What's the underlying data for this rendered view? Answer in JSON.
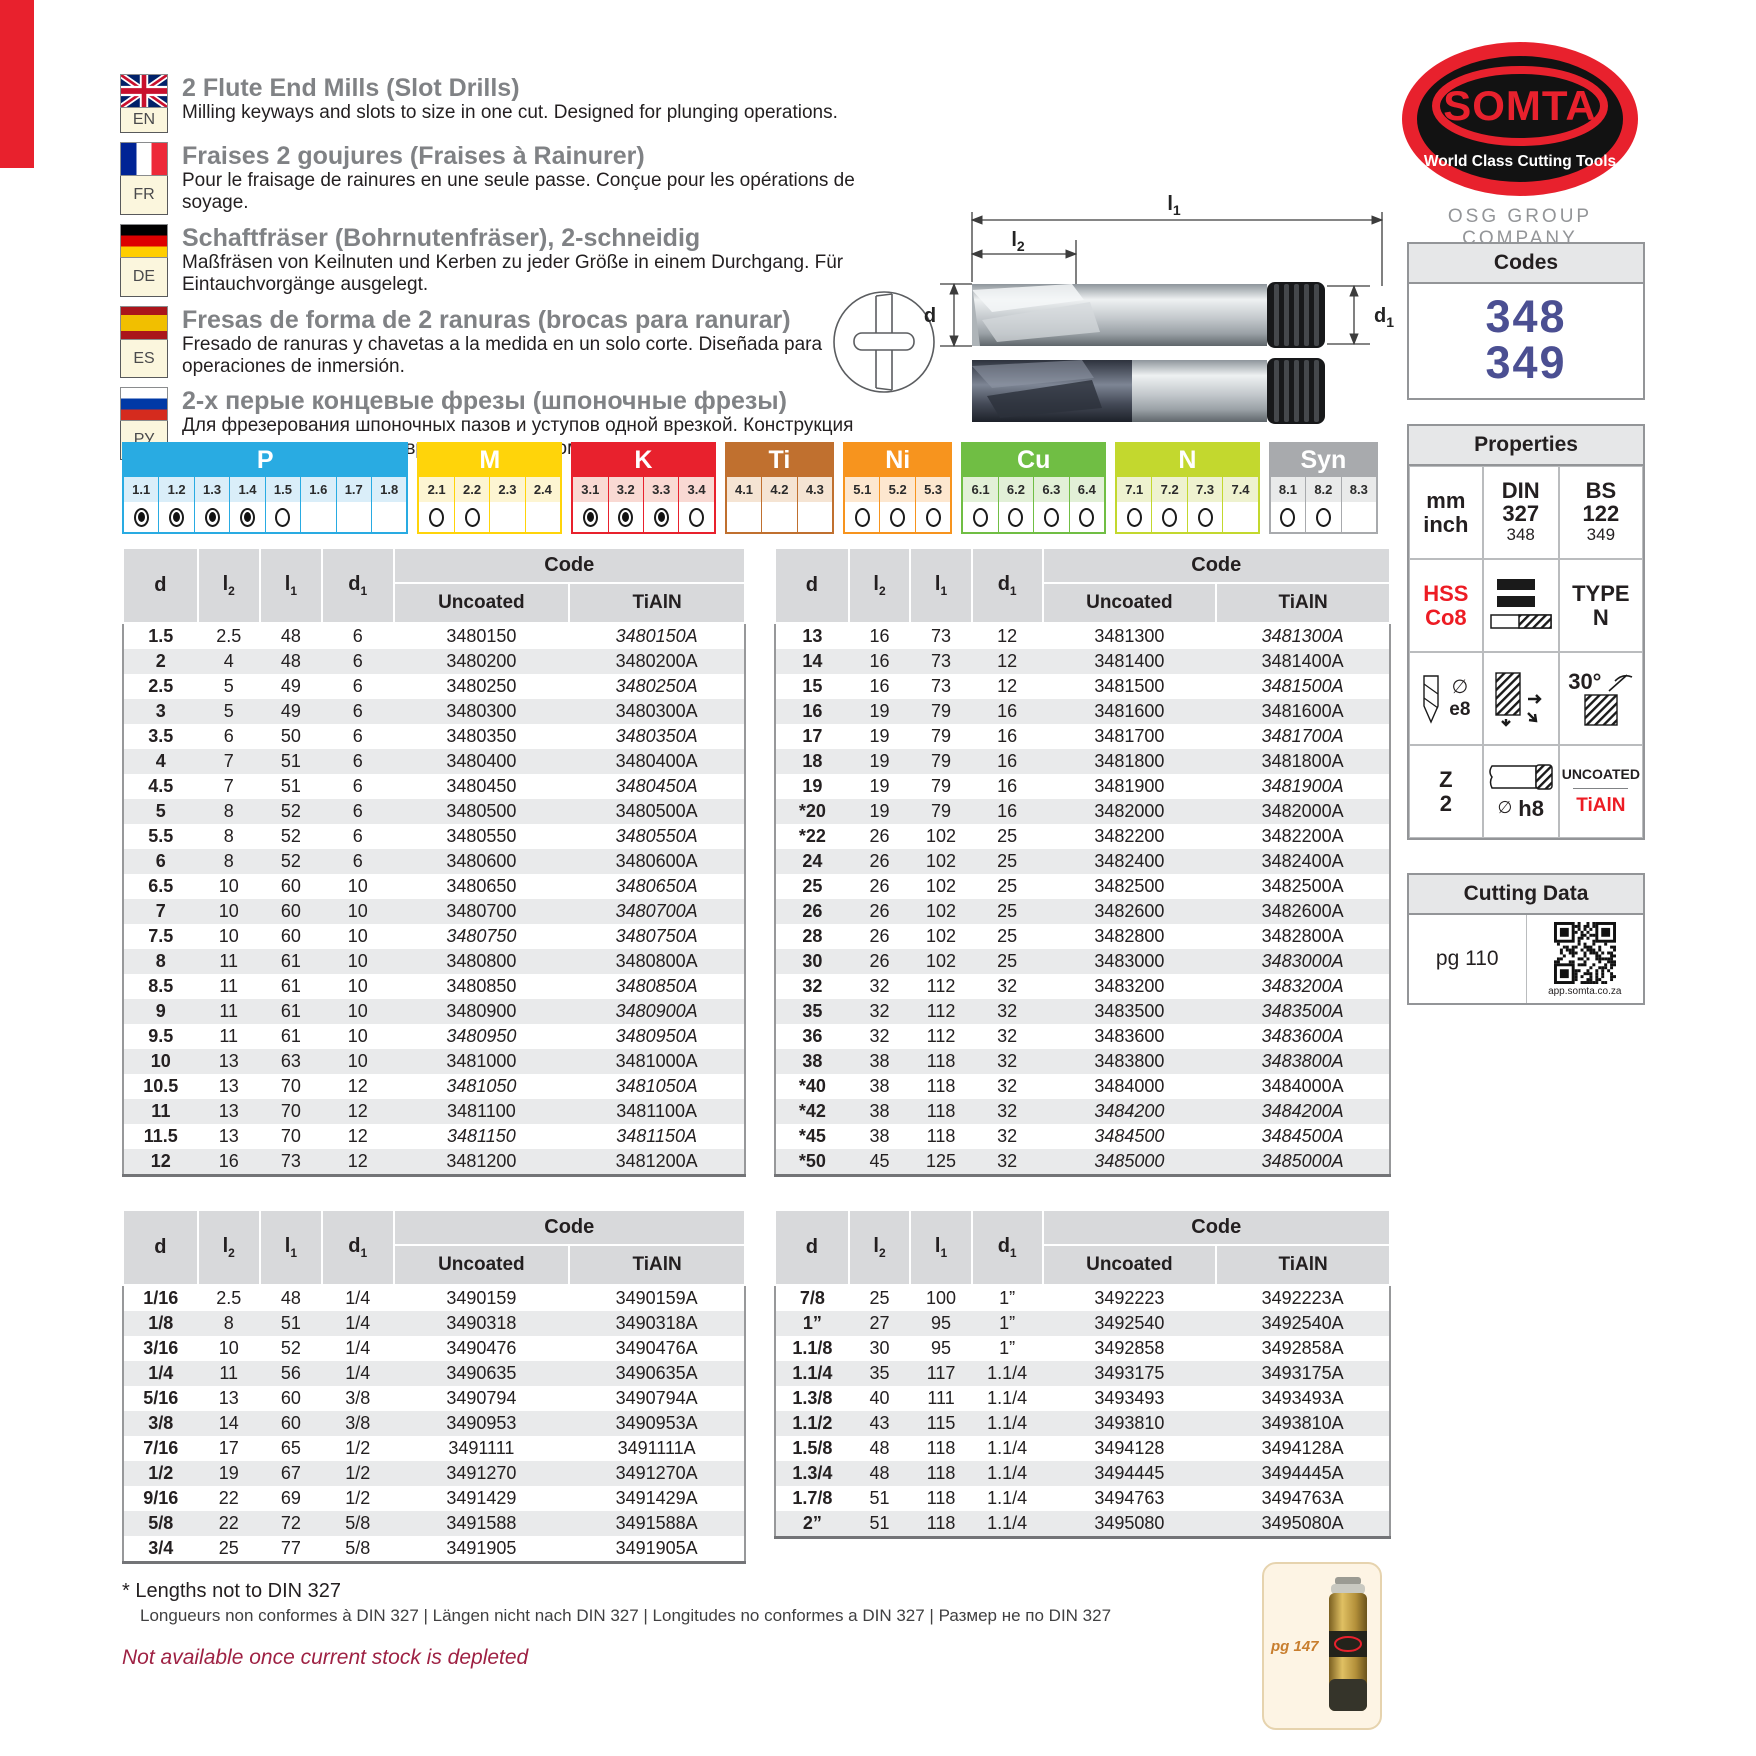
{
  "languages": [
    {
      "code": "EN",
      "flag": "uk",
      "title": "2 Flute End Mills (Slot Drills)",
      "desc": "Milling keyways and slots to size in one cut. Designed for plunging operations."
    },
    {
      "code": "FR",
      "flag": "fr",
      "title": "Fraises 2 goujures (Fraises à Rainurer)",
      "desc": "Pour le fraisage de rainures en une seule passe. Conçue pour les opérations de soyage."
    },
    {
      "code": "DE",
      "flag": "de",
      "title": "Schaftfräser (Bohrnutenfräser), 2-schneidig",
      "desc": "Maßfräsen von Keilnuten und Kerben zu jeder Größe in einem Durchgang. Für Eintauchvorgänge ausgelegt."
    },
    {
      "code": "ES",
      "flag": "es",
      "title": "Fresas de forma de 2 ranuras (brocas para ranurar)",
      "desc": "Fresado de ranuras y chavetas a la medida en un solo corte. Diseñada para operaciones de inmersión."
    },
    {
      "code": "РУ",
      "flag": "ru",
      "title": "2-х перые концевые фрезы (шпоночные фрезы)",
      "desc": "Для фрезерования шпоночных пазов и уступов одной врезкой. Конструкция позволяет осуществлять врезание под углом."
    }
  ],
  "logo": {
    "name": "SOMTA",
    "tagline": "World Class Cutting Tools",
    "company": "OSG GROUP COMPANY",
    "brand_red": "#e8212d"
  },
  "codes": {
    "title": "Codes",
    "values": [
      "348",
      "349"
    ],
    "color": "#4b4f92"
  },
  "properties": {
    "title": "Properties",
    "unit_top": "mm",
    "unit_bottom": "inch",
    "din_l1": "DIN",
    "din_l2": "327",
    "din_sub": "348",
    "bs_l1": "BS",
    "bs_l2": "122",
    "bs_sub": "349",
    "hss_l1": "HSS",
    "hss_l2": "Co8",
    "type_l1": "TYPE",
    "type_l2": "N",
    "diam_symbol": "∅",
    "flute_tolerance": "e8",
    "helix_angle": "30°",
    "z_l1": "Z",
    "z_l2": "2",
    "shank_tolerance": "h8",
    "coating_1": "UNCOATED",
    "coating_2": "TiAlN"
  },
  "cutting": {
    "title": "Cutting Data",
    "page": "pg 110",
    "qr_caption": "app.somta.co.za"
  },
  "diagram": {
    "l1_b": "l",
    "l1_s": "1",
    "l2_b": "l",
    "l2_s": "2",
    "d": "d",
    "d1_b": "d",
    "d1_s": "1"
  },
  "materials": [
    {
      "label": "P",
      "color": "#29abe2",
      "tint": "#daeef9",
      "cells": [
        {
          "n": "1.1",
          "state": "filled"
        },
        {
          "n": "1.2",
          "state": "filled"
        },
        {
          "n": "1.3",
          "state": "filled"
        },
        {
          "n": "1.4",
          "state": "filled"
        },
        {
          "n": "1.5",
          "state": "empty"
        },
        {
          "n": "1.6",
          "state": "none"
        },
        {
          "n": "1.7",
          "state": "none"
        },
        {
          "n": "1.8",
          "state": "none"
        }
      ]
    },
    {
      "label": "M",
      "color": "#ffd40a",
      "tint": "#fdf5d2",
      "cells": [
        {
          "n": "2.1",
          "state": "empty"
        },
        {
          "n": "2.2",
          "state": "empty"
        },
        {
          "n": "2.3",
          "state": "none"
        },
        {
          "n": "2.4",
          "state": "none"
        }
      ]
    },
    {
      "label": "K",
      "color": "#e8212d",
      "tint": "#f9d9d3",
      "cells": [
        {
          "n": "3.1",
          "state": "filled"
        },
        {
          "n": "3.2",
          "state": "filled"
        },
        {
          "n": "3.3",
          "state": "filled"
        },
        {
          "n": "3.4",
          "state": "empty"
        }
      ]
    },
    {
      "label": "Ti",
      "color": "#c0702f",
      "tint": "#f5e4d3",
      "cells": [
        {
          "n": "4.1",
          "state": "none"
        },
        {
          "n": "4.2",
          "state": "none"
        },
        {
          "n": "4.3",
          "state": "none"
        }
      ]
    },
    {
      "label": "Ni",
      "color": "#f7941e",
      "tint": "#fde7cf",
      "cells": [
        {
          "n": "5.1",
          "state": "empty"
        },
        {
          "n": "5.2",
          "state": "empty"
        },
        {
          "n": "5.3",
          "state": "empty"
        }
      ]
    },
    {
      "label": "Cu",
      "color": "#70be44",
      "tint": "#e2f0d7",
      "cells": [
        {
          "n": "6.1",
          "state": "empty"
        },
        {
          "n": "6.2",
          "state": "empty"
        },
        {
          "n": "6.3",
          "state": "empty"
        },
        {
          "n": "6.4",
          "state": "empty"
        }
      ]
    },
    {
      "label": "N",
      "color": "#c3d82e",
      "tint": "#eef2cf",
      "cells": [
        {
          "n": "7.1",
          "state": "empty"
        },
        {
          "n": "7.2",
          "state": "empty"
        },
        {
          "n": "7.3",
          "state": "empty"
        },
        {
          "n": "7.4",
          "state": "none"
        }
      ]
    },
    {
      "label": "Syn",
      "color": "#a8aaad",
      "tint": "#e9eaea",
      "cells": [
        {
          "n": "8.1",
          "state": "empty"
        },
        {
          "n": "8.2",
          "state": "empty"
        },
        {
          "n": "8.3",
          "state": "none"
        }
      ]
    }
  ],
  "tables": {
    "headers": {
      "d": "d",
      "l2_b": "l",
      "l2_s": "2",
      "l1_b": "l",
      "l1_s": "1",
      "d1_b": "d",
      "d1_s": "1",
      "code": "Code",
      "uncoated": "Uncoated",
      "tialn": "TiAlN"
    },
    "t1_rows": [
      [
        "1.5",
        "2.5",
        "48",
        "6",
        "3480150",
        "3480150A",
        1
      ],
      [
        "2",
        "4",
        "48",
        "6",
        "3480200",
        "3480200A",
        0
      ],
      [
        "2.5",
        "5",
        "49",
        "6",
        "3480250",
        "3480250A",
        1
      ],
      [
        "3",
        "5",
        "49",
        "6",
        "3480300",
        "3480300A",
        0
      ],
      [
        "3.5",
        "6",
        "50",
        "6",
        "3480350",
        "3480350A",
        1
      ],
      [
        "4",
        "7",
        "51",
        "6",
        "3480400",
        "3480400A",
        0
      ],
      [
        "4.5",
        "7",
        "51",
        "6",
        "3480450",
        "3480450A",
        1
      ],
      [
        "5",
        "8",
        "52",
        "6",
        "3480500",
        "3480500A",
        0
      ],
      [
        "5.5",
        "8",
        "52",
        "6",
        "3480550",
        "3480550A",
        1
      ],
      [
        "6",
        "8",
        "52",
        "6",
        "3480600",
        "3480600A",
        0
      ],
      [
        "6.5",
        "10",
        "60",
        "10",
        "3480650",
        "3480650A",
        1
      ],
      [
        "7",
        "10",
        "60",
        "10",
        "3480700",
        "3480700A",
        1
      ],
      [
        "7.5",
        "10",
        "60",
        "10",
        "3480750",
        "3480750A",
        3
      ],
      [
        "8",
        "11",
        "61",
        "10",
        "3480800",
        "3480800A",
        0
      ],
      [
        "8.5",
        "11",
        "61",
        "10",
        "3480850",
        "3480850A",
        1
      ],
      [
        "9",
        "11",
        "61",
        "10",
        "3480900",
        "3480900A",
        1
      ],
      [
        "9.5",
        "11",
        "61",
        "10",
        "3480950",
        "3480950A",
        3
      ],
      [
        "10",
        "13",
        "63",
        "10",
        "3481000",
        "3481000A",
        0
      ],
      [
        "10.5",
        "13",
        "70",
        "12",
        "3481050",
        "3481050A",
        3
      ],
      [
        "11",
        "13",
        "70",
        "12",
        "3481100",
        "3481100A",
        0
      ],
      [
        "11.5",
        "13",
        "70",
        "12",
        "3481150",
        "3481150A",
        3
      ],
      [
        "12",
        "16",
        "73",
        "12",
        "3481200",
        "3481200A",
        0
      ]
    ],
    "t2_rows": [
      [
        "13",
        "16",
        "73",
        "12",
        "3481300",
        "3481300A",
        1
      ],
      [
        "14",
        "16",
        "73",
        "12",
        "3481400",
        "3481400A",
        0
      ],
      [
        "15",
        "16",
        "73",
        "12",
        "3481500",
        "3481500A",
        1
      ],
      [
        "16",
        "19",
        "79",
        "16",
        "3481600",
        "3481600A",
        0
      ],
      [
        "17",
        "19",
        "79",
        "16",
        "3481700",
        "3481700A",
        1
      ],
      [
        "18",
        "19",
        "79",
        "16",
        "3481800",
        "3481800A",
        0
      ],
      [
        "19",
        "19",
        "79",
        "16",
        "3481900",
        "3481900A",
        1
      ],
      [
        "*20",
        "19",
        "79",
        "16",
        "3482000",
        "3482000A",
        0
      ],
      [
        "*22",
        "26",
        "102",
        "25",
        "3482200",
        "3482200A",
        0
      ],
      [
        "24",
        "26",
        "102",
        "25",
        "3482400",
        "3482400A",
        0
      ],
      [
        "25",
        "26",
        "102",
        "25",
        "3482500",
        "3482500A",
        0
      ],
      [
        "26",
        "26",
        "102",
        "25",
        "3482600",
        "3482600A",
        0
      ],
      [
        "28",
        "26",
        "102",
        "25",
        "3482800",
        "3482800A",
        0
      ],
      [
        "30",
        "26",
        "102",
        "25",
        "3483000",
        "3483000A",
        1
      ],
      [
        "32",
        "32",
        "112",
        "32",
        "3483200",
        "3483200A",
        1
      ],
      [
        "35",
        "32",
        "112",
        "32",
        "3483500",
        "3483500A",
        1
      ],
      [
        "36",
        "32",
        "112",
        "32",
        "3483600",
        "3483600A",
        1
      ],
      [
        "38",
        "38",
        "118",
        "32",
        "3483800",
        "3483800A",
        1
      ],
      [
        "*40",
        "38",
        "118",
        "32",
        "3484000",
        "3484000A",
        0
      ],
      [
        "*42",
        "38",
        "118",
        "32",
        "3484200",
        "3484200A",
        3
      ],
      [
        "*45",
        "38",
        "118",
        "32",
        "3484500",
        "3484500A",
        3
      ],
      [
        "*50",
        "45",
        "125",
        "32",
        "3485000",
        "3485000A",
        3
      ]
    ],
    "t3_rows": [
      [
        "1/16",
        "2.5",
        "48",
        "1/4",
        "3490159",
        "3490159A",
        0
      ],
      [
        "1/8",
        "8",
        "51",
        "1/4",
        "3490318",
        "3490318A",
        0
      ],
      [
        "3/16",
        "10",
        "52",
        "1/4",
        "3490476",
        "3490476A",
        0
      ],
      [
        "1/4",
        "11",
        "56",
        "1/4",
        "3490635",
        "3490635A",
        0
      ],
      [
        "5/16",
        "13",
        "60",
        "3/8",
        "3490794",
        "3490794A",
        0
      ],
      [
        "3/8",
        "14",
        "60",
        "3/8",
        "3490953",
        "3490953A",
        0
      ],
      [
        "7/16",
        "17",
        "65",
        "1/2",
        "3491111",
        "3491111A",
        0
      ],
      [
        "1/2",
        "19",
        "67",
        "1/2",
        "3491270",
        "3491270A",
        0
      ],
      [
        "9/16",
        "22",
        "69",
        "1/2",
        "3491429",
        "3491429A",
        0
      ],
      [
        "5/8",
        "22",
        "72",
        "5/8",
        "3491588",
        "3491588A",
        0
      ],
      [
        "3/4",
        "25",
        "77",
        "5/8",
        "3491905",
        "3491905A",
        0
      ]
    ],
    "t4_rows": [
      [
        "7/8",
        "25",
        "100",
        "1”",
        "3492223",
        "3492223A",
        0
      ],
      [
        "1”",
        "27",
        "95",
        "1”",
        "3492540",
        "3492540A",
        0
      ],
      [
        "1.1/8",
        "30",
        "95",
        "1”",
        "3492858",
        "3492858A",
        0
      ],
      [
        "1.1/4",
        "35",
        "117",
        "1.1/4",
        "3493175",
        "3493175A",
        0
      ],
      [
        "1.3/8",
        "40",
        "111",
        "1.1/4",
        "3493493",
        "3493493A",
        0
      ],
      [
        "1.1/2",
        "43",
        "115",
        "1.1/4",
        "3493810",
        "3493810A",
        0
      ],
      [
        "1.5/8",
        "48",
        "118",
        "1.1/4",
        "3494128",
        "3494128A",
        0
      ],
      [
        "1.3/4",
        "48",
        "118",
        "1.1/4",
        "3494445",
        "3494445A",
        0
      ],
      [
        "1.7/8",
        "51",
        "118",
        "1.1/4",
        "3494763",
        "3494763A",
        0
      ],
      [
        "2”",
        "51",
        "118",
        "1.1/4",
        "3495080",
        "3495080A",
        0
      ]
    ]
  },
  "footnotes": {
    "note1": "* Lengths not to DIN 327",
    "note2": "Longueurs non conformes à DIN 327 | Längen nicht nach DIN 327 | Longitudes no conformes a DIN 327 | Размер не по DIN 327",
    "note3": "Not available once current stock is depleted"
  },
  "product_ref": {
    "page": "pg 147"
  },
  "colors": {
    "discontinued": "#9e2143",
    "brand_red": "#e8212d",
    "codes_blue": "#4b4f92"
  }
}
